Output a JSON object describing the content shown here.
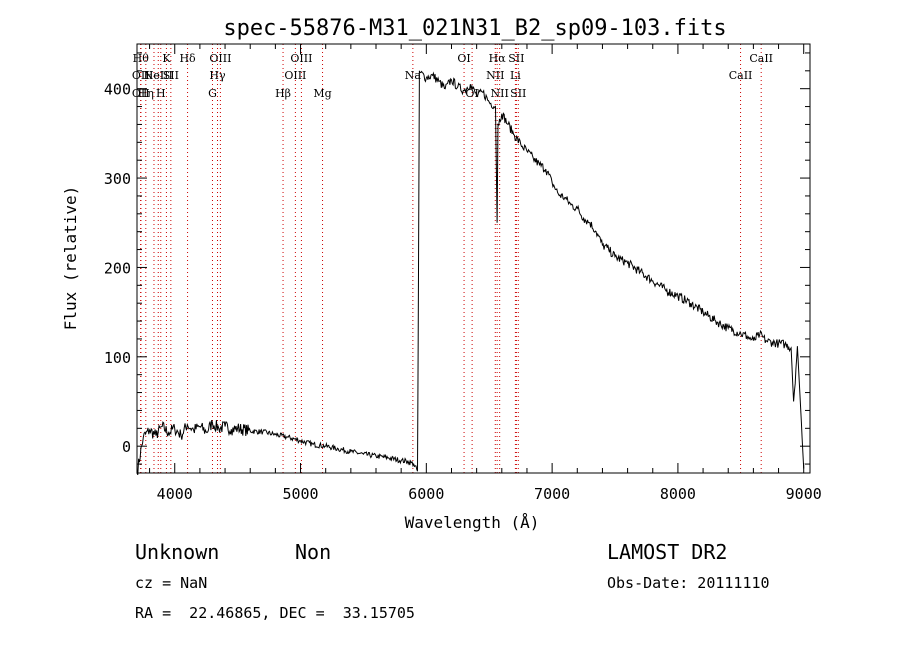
{
  "chart_data": {
    "type": "line",
    "title": "spec-55876-M31_021N31_B2_sp09-103.fits",
    "xlabel": "Wavelength (Å)",
    "ylabel": "Flux (relative)",
    "xlim": [
      3700,
      9050
    ],
    "ylim": [
      -30,
      450
    ],
    "xticks": [
      4000,
      5000,
      6000,
      7000,
      8000,
      9000
    ],
    "yticks": [
      0,
      100,
      200,
      300,
      400
    ],
    "grid": false,
    "line_color": "#000000",
    "marker_line_color": "#cc0000",
    "series": [
      {
        "x": [
          3700,
          3750,
          3800,
          3850,
          3900,
          3950,
          4000,
          4050,
          4100,
          4150,
          4200,
          4250,
          4300,
          4350,
          4400,
          4450,
          4500,
          4600,
          4700,
          4800,
          4900,
          5000,
          5100,
          5200,
          5300,
          5400,
          5500,
          5600,
          5700,
          5800,
          5850,
          5900,
          5930,
          5945,
          5950,
          6000,
          6050,
          6100,
          6150,
          6200,
          6250,
          6300,
          6350,
          6400,
          6450,
          6500,
          6550,
          6563,
          6570,
          6600,
          6650,
          6700,
          6750,
          6800,
          6850,
          6900,
          6950,
          7000,
          7050,
          7100,
          7150,
          7200,
          7250,
          7300,
          7350,
          7400,
          7450,
          7500,
          7600,
          7700,
          7800,
          7900,
          8000,
          8100,
          8200,
          8300,
          8400,
          8500,
          8550,
          8600,
          8650,
          8700,
          8750,
          8800,
          8850,
          8900,
          8920,
          8950,
          9000
        ],
        "y": [
          -30,
          10,
          18,
          12,
          22,
          15,
          20,
          12,
          24,
          18,
          22,
          16,
          26,
          20,
          22,
          19,
          20,
          17,
          16,
          13,
          10,
          6,
          2,
          0,
          -3,
          -6,
          -9,
          -11,
          -13,
          -16,
          -17,
          -20,
          -28,
          420,
          418,
          412,
          415,
          408,
          400,
          410,
          402,
          398,
          405,
          392,
          396,
          385,
          380,
          250,
          360,
          372,
          360,
          348,
          338,
          330,
          322,
          315,
          310,
          295,
          282,
          278,
          270,
          266,
          255,
          250,
          240,
          225,
          220,
          212,
          205,
          195,
          185,
          175,
          168,
          160,
          150,
          140,
          132,
          126,
          123,
          118,
          125,
          118,
          116,
          115,
          114,
          110,
          50,
          112,
          -25
        ]
      }
    ],
    "lines": [
      {
        "x": 3730,
        "label": "Hθ",
        "row": 0
      },
      {
        "x": 3730,
        "label": "OII",
        "row": 1
      },
      {
        "x": 3730,
        "label": "OII",
        "row": 2
      },
      {
        "x": 3770,
        "label": "Hη",
        "row": 2
      },
      {
        "x": 3835,
        "label": "HeI",
        "row": 1
      },
      {
        "x": 3869,
        "label": "NeIII",
        "row": 1
      },
      {
        "x": 3889,
        "label": "H",
        "row": 2
      },
      {
        "x": 3934,
        "label": "K",
        "row": 0
      },
      {
        "x": 3969,
        "label": "SII",
        "row": 1
      },
      {
        "x": 4102,
        "label": "Hδ",
        "row": 0
      },
      {
        "x": 4300,
        "label": "G",
        "row": 2
      },
      {
        "x": 4340,
        "label": "Hγ",
        "row": 1
      },
      {
        "x": 4363,
        "label": "OIII",
        "row": 0
      },
      {
        "x": 4861,
        "label": "Hβ",
        "row": 2
      },
      {
        "x": 4959,
        "label": "OIII",
        "row": 1
      },
      {
        "x": 5007,
        "label": "OIII",
        "row": 0
      },
      {
        "x": 5175,
        "label": "Mg",
        "row": 2
      },
      {
        "x": 5893,
        "label": "Na",
        "row": 1
      },
      {
        "x": 6300,
        "label": "OI",
        "row": 0
      },
      {
        "x": 6364,
        "label": "OI",
        "row": 2
      },
      {
        "x": 6548,
        "label": "NII",
        "row": 1
      },
      {
        "x": 6563,
        "label": "Hα",
        "row": 0
      },
      {
        "x": 6583,
        "label": "NII",
        "row": 2
      },
      {
        "x": 6708,
        "label": "Li",
        "row": 1
      },
      {
        "x": 6716,
        "label": "SII",
        "row": 0
      },
      {
        "x": 6731,
        "label": "SII",
        "row": 2
      },
      {
        "x": 8498,
        "label": "CaII",
        "row": 1
      },
      {
        "x": 8662,
        "label": "CaII",
        "row": 0
      }
    ]
  },
  "info": {
    "class": "Unknown",
    "subclass": "Non",
    "cz": "cz = NaN",
    "coords": "RA =  22.46865, DEC =  33.15705",
    "survey": "LAMOST DR2",
    "obs_date": "Obs-Date: 20111110"
  }
}
